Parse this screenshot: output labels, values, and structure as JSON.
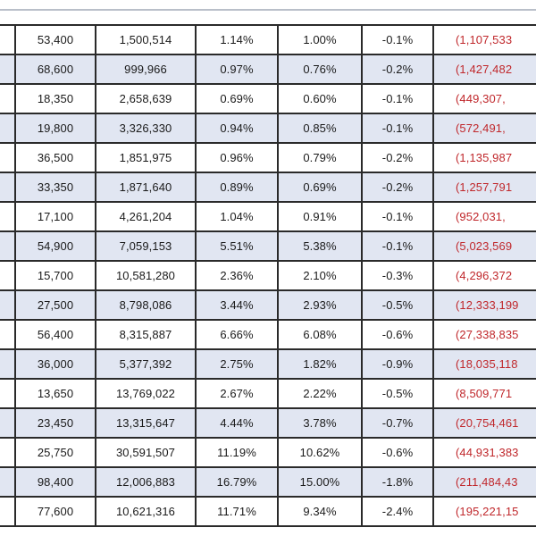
{
  "table": {
    "rows": [
      {
        "a": "53,400",
        "b": "1,500,514",
        "c": "1.14%",
        "d": "1.00%",
        "e": "-0.1%",
        "f": "(1,107,533",
        "shaded": false
      },
      {
        "a": "68,600",
        "b": "999,966",
        "c": "0.97%",
        "d": "0.76%",
        "e": "-0.2%",
        "f": "(1,427,482",
        "shaded": true
      },
      {
        "a": "18,350",
        "b": "2,658,639",
        "c": "0.69%",
        "d": "0.60%",
        "e": "-0.1%",
        "f": "(449,307,",
        "shaded": false
      },
      {
        "a": "19,800",
        "b": "3,326,330",
        "c": "0.94%",
        "d": "0.85%",
        "e": "-0.1%",
        "f": "(572,491,",
        "shaded": true
      },
      {
        "a": "36,500",
        "b": "1,851,975",
        "c": "0.96%",
        "d": "0.79%",
        "e": "-0.2%",
        "f": "(1,135,987",
        "shaded": false
      },
      {
        "a": "33,350",
        "b": "1,871,640",
        "c": "0.89%",
        "d": "0.69%",
        "e": "-0.2%",
        "f": "(1,257,791",
        "shaded": true
      },
      {
        "a": "17,100",
        "b": "4,261,204",
        "c": "1.04%",
        "d": "0.91%",
        "e": "-0.1%",
        "f": "(952,031,",
        "shaded": false
      },
      {
        "a": "54,900",
        "b": "7,059,153",
        "c": "5.51%",
        "d": "5.38%",
        "e": "-0.1%",
        "f": "(5,023,569",
        "shaded": true
      },
      {
        "a": "15,700",
        "b": "10,581,280",
        "c": "2.36%",
        "d": "2.10%",
        "e": "-0.3%",
        "f": "(4,296,372",
        "shaded": false
      },
      {
        "a": "27,500",
        "b": "8,798,086",
        "c": "3.44%",
        "d": "2.93%",
        "e": "-0.5%",
        "f": "(12,333,199",
        "shaded": true
      },
      {
        "a": "56,400",
        "b": "8,315,887",
        "c": "6.66%",
        "d": "6.08%",
        "e": "-0.6%",
        "f": "(27,338,835",
        "shaded": false
      },
      {
        "a": "36,000",
        "b": "5,377,392",
        "c": "2.75%",
        "d": "1.82%",
        "e": "-0.9%",
        "f": "(18,035,118",
        "shaded": true
      },
      {
        "a": "13,650",
        "b": "13,769,022",
        "c": "2.67%",
        "d": "2.22%",
        "e": "-0.5%",
        "f": "(8,509,771",
        "shaded": false
      },
      {
        "a": "23,450",
        "b": "13,315,647",
        "c": "4.44%",
        "d": "3.78%",
        "e": "-0.7%",
        "f": "(20,754,461",
        "shaded": true
      },
      {
        "a": "25,750",
        "b": "30,591,507",
        "c": "11.19%",
        "d": "10.62%",
        "e": "-0.6%",
        "f": "(44,931,383",
        "shaded": false
      },
      {
        "a": "98,400",
        "b": "12,006,883",
        "c": "16.79%",
        "d": "15.00%",
        "e": "-1.8%",
        "f": "(211,484,43",
        "shaded": true
      },
      {
        "a": "77,600",
        "b": "10,621,316",
        "c": "11.71%",
        "d": "9.34%",
        "e": "-2.4%",
        "f": "(195,221,15",
        "shaded": false
      }
    ]
  },
  "colors": {
    "shaded_row": "#e1e6f2",
    "negative_text": "#c0282c",
    "grid_line": "#2a2a2a"
  }
}
